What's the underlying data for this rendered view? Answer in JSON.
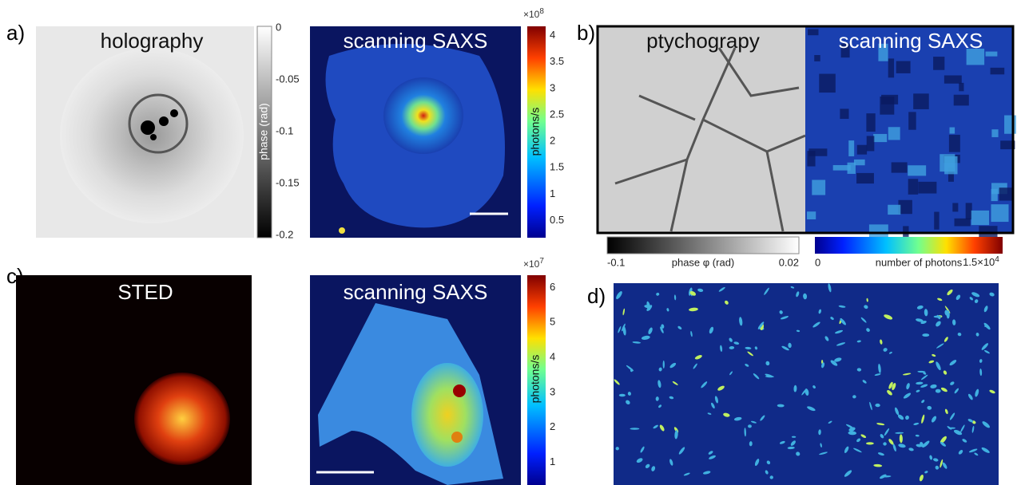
{
  "panels": [
    {
      "label": "a)",
      "images": [
        {
          "title": "holography"
        },
        {
          "title": "scanning SAXS"
        }
      ],
      "colorbars": [
        {
          "label": "phase (rad)",
          "ticks": [
            "0",
            "-0.05",
            "-0.1",
            "-0.15",
            "-0.2"
          ]
        },
        {
          "label": "photons/s",
          "multiplier": "×10",
          "exponent": "8",
          "ticks": [
            "4",
            "3.5",
            "3",
            "2.5",
            "2",
            "1.5",
            "1",
            "0.5"
          ]
        }
      ]
    },
    {
      "label": "b)",
      "images": [
        {
          "title": "ptychograpy"
        },
        {
          "title": "scanning SAXS"
        }
      ],
      "colorbars": [
        {
          "label": "phase φ (rad)",
          "ticks": [
            "-0.1",
            "0.02"
          ]
        },
        {
          "label": "number of photons",
          "ticks": [
            "0",
            "1.5×10"
          ],
          "exponent": "4"
        }
      ]
    },
    {
      "label": "c)",
      "images": [
        {
          "title": "STED"
        },
        {
          "title": "scanning SAXS"
        }
      ],
      "colorbars": [
        {
          "label": "photons/s",
          "multiplier": "×10",
          "exponent": "7",
          "ticks": [
            "6",
            "5",
            "4",
            "3",
            "2",
            "1"
          ]
        }
      ]
    },
    {
      "label": "d)"
    }
  ]
}
